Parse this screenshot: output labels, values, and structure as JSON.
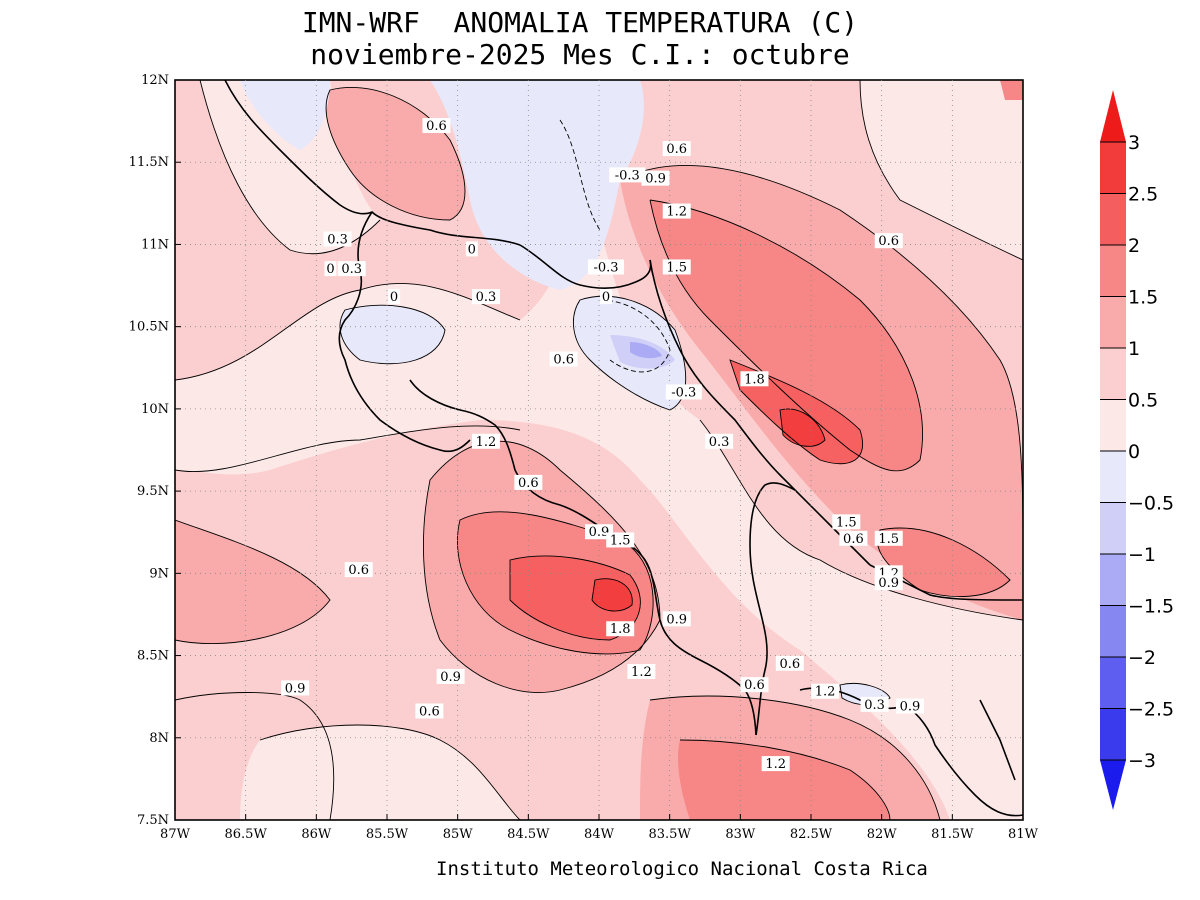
{
  "title_line1": "IMN-WRF  ANOMALIA TEMPERATURA (C)",
  "title_line2": "noviembre-2025 Mes C.I.: octubre",
  "footer": "Instituto Meteorologico Nacional Costa Rica",
  "map": {
    "lon_range": [
      -87,
      -81
    ],
    "lat_range": [
      7.5,
      12
    ],
    "x_ticks": [
      "87W",
      "86.5W",
      "86W",
      "85.5W",
      "85W",
      "84.5W",
      "84W",
      "83.5W",
      "83W",
      "82.5W",
      "82W",
      "81.5W",
      "81W"
    ],
    "y_ticks": [
      "12N",
      "11.5N",
      "11N",
      "10.5N",
      "10N",
      "9.5N",
      "9N",
      "8.5N",
      "8N",
      "7.5N"
    ],
    "grid": true
  },
  "colorbar": {
    "labels": [
      "3",
      "2.5",
      "2",
      "1.5",
      "1",
      "0.5",
      "0",
      "−0.5",
      "−1",
      "−1.5",
      "−2",
      "−2.5",
      "−3"
    ],
    "colors": [
      "#ee1b1b",
      "#f23b3b",
      "#f55e5e",
      "#f78787",
      "#f9aaaa",
      "#fbcfcf",
      "#fde8e8",
      "#e8e8fb",
      "#cfcff8",
      "#aaaaf5",
      "#8787f2",
      "#5e5ef0",
      "#3b3bee",
      "#1b1bee"
    ]
  },
  "contour_labels": [
    {
      "text": "0.6",
      "lon": -85.15,
      "lat": 11.72
    },
    {
      "text": "0.6",
      "lon": -83.45,
      "lat": 11.58
    },
    {
      "text": "-0.3",
      "lon": -83.8,
      "lat": 11.42
    },
    {
      "text": "0.9",
      "lon": -83.6,
      "lat": 11.4
    },
    {
      "text": "1.2",
      "lon": -83.45,
      "lat": 11.2
    },
    {
      "text": "0.6",
      "lon": -81.95,
      "lat": 11.02
    },
    {
      "text": "0.3",
      "lon": -85.85,
      "lat": 11.03
    },
    {
      "text": "0",
      "lon": -84.9,
      "lat": 10.97
    },
    {
      "text": "-0.3",
      "lon": -83.95,
      "lat": 10.86
    },
    {
      "text": "1.5",
      "lon": -83.45,
      "lat": 10.86
    },
    {
      "text": "0",
      "lon": -85.9,
      "lat": 10.85
    },
    {
      "text": "0.3",
      "lon": -85.75,
      "lat": 10.85
    },
    {
      "text": "0",
      "lon": -85.45,
      "lat": 10.68
    },
    {
      "text": "0.3",
      "lon": -84.8,
      "lat": 10.68
    },
    {
      "text": "0",
      "lon": -83.95,
      "lat": 10.68
    },
    {
      "text": "0.6",
      "lon": -84.25,
      "lat": 10.3
    },
    {
      "text": "1.8",
      "lon": -82.9,
      "lat": 10.18
    },
    {
      "text": "-0.3",
      "lon": -83.4,
      "lat": 10.1
    },
    {
      "text": "1.2",
      "lon": -84.8,
      "lat": 9.8
    },
    {
      "text": "0.3",
      "lon": -83.15,
      "lat": 9.8
    },
    {
      "text": "0.6",
      "lon": -84.5,
      "lat": 9.55
    },
    {
      "text": "1.5",
      "lon": -82.25,
      "lat": 9.31
    },
    {
      "text": "0.9",
      "lon": -84.0,
      "lat": 9.25
    },
    {
      "text": "1.5",
      "lon": -83.85,
      "lat": 9.2
    },
    {
      "text": "0.6",
      "lon": -82.2,
      "lat": 9.21
    },
    {
      "text": "1.5",
      "lon": -81.95,
      "lat": 9.21
    },
    {
      "text": "0.6",
      "lon": -85.7,
      "lat": 9.02
    },
    {
      "text": "1.2",
      "lon": -81.95,
      "lat": 9.0
    },
    {
      "text": "0.9",
      "lon": -81.95,
      "lat": 8.94
    },
    {
      "text": "1.8",
      "lon": -83.85,
      "lat": 8.66
    },
    {
      "text": "0.9",
      "lon": -83.45,
      "lat": 8.72
    },
    {
      "text": "0.6",
      "lon": -82.65,
      "lat": 8.45
    },
    {
      "text": "1.2",
      "lon": -83.7,
      "lat": 8.4
    },
    {
      "text": "0.9",
      "lon": -86.15,
      "lat": 8.3
    },
    {
      "text": "0.9",
      "lon": -85.05,
      "lat": 8.37
    },
    {
      "text": "0.6",
      "lon": -82.9,
      "lat": 8.32
    },
    {
      "text": "1.2",
      "lon": -82.4,
      "lat": 8.28
    },
    {
      "text": "0.3",
      "lon": -82.05,
      "lat": 8.2
    },
    {
      "text": "0.9",
      "lon": -81.8,
      "lat": 8.19
    },
    {
      "text": "0.6",
      "lon": -85.2,
      "lat": 8.16
    },
    {
      "text": "1.2",
      "lon": -82.75,
      "lat": 7.84
    }
  ]
}
